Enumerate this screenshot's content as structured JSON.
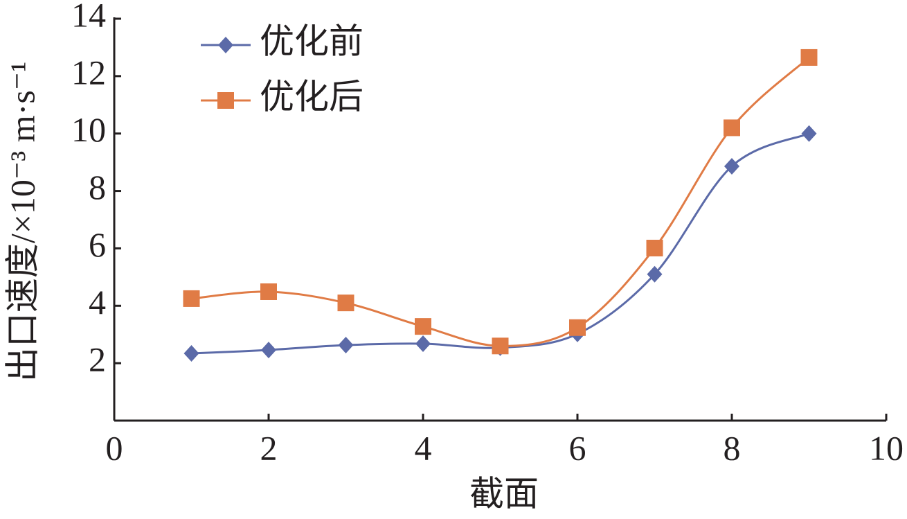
{
  "chart_data": {
    "type": "line",
    "x_label": "截面",
    "y_label": "出口速度/×10⁻³ m·s⁻¹",
    "xlim": [
      0,
      10
    ],
    "xticks": [
      0,
      2,
      4,
      6,
      8,
      10
    ],
    "ylim": [
      0,
      14
    ],
    "yticks": [
      2,
      4,
      6,
      8,
      10,
      12,
      14
    ],
    "smooth": true,
    "series": [
      {
        "name": "优化前",
        "color": "#5b6aa8",
        "marker": "diamond",
        "x": [
          1,
          2,
          3,
          4,
          5,
          6,
          7,
          8,
          9
        ],
        "values": [
          2.34,
          2.46,
          2.63,
          2.68,
          2.54,
          3.02,
          5.1,
          8.86,
          10.0
        ]
      },
      {
        "name": "优化后",
        "color": "#e07b45",
        "marker": "square",
        "x": [
          1,
          2,
          3,
          4,
          5,
          6,
          7,
          8,
          9
        ],
        "values": [
          4.25,
          4.49,
          4.1,
          3.28,
          2.6,
          3.24,
          6.01,
          10.2,
          12.65
        ]
      }
    ]
  }
}
